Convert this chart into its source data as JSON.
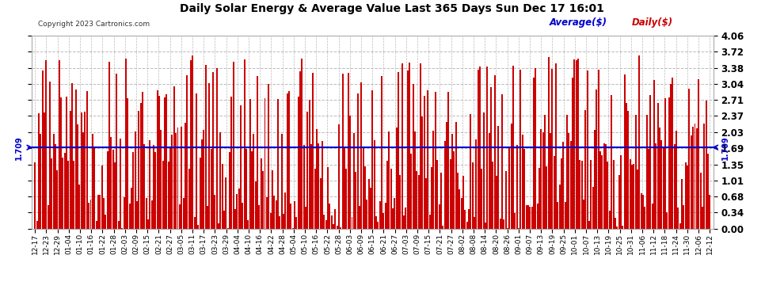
{
  "title": "Daily Solar Energy & Average Value Last 365 Days Sun Dec 17 16:01",
  "copyright": "Copyright 2023 Cartronics.com",
  "legend_average": "Average($)",
  "legend_daily": "Daily($)",
  "average_value": 1.709,
  "bar_color": "#cc0000",
  "average_line_color": "#0000cc",
  "yticks": [
    0.0,
    0.34,
    0.68,
    1.01,
    1.35,
    1.69,
    2.03,
    2.37,
    2.71,
    3.04,
    3.38,
    3.72,
    4.06
  ],
  "ylim": [
    0.0,
    4.06
  ],
  "background_color": "#ffffff",
  "plot_bg_color": "#ffffff",
  "grid_color": "#bbbbbb",
  "title_color": "#000000",
  "xtick_labels": [
    "12-17",
    "12-23",
    "12-29",
    "01-04",
    "01-10",
    "01-16",
    "01-22",
    "01-28",
    "02-03",
    "02-09",
    "02-15",
    "02-21",
    "02-27",
    "03-05",
    "03-11",
    "03-17",
    "03-23",
    "03-29",
    "04-04",
    "04-10",
    "04-16",
    "04-22",
    "04-28",
    "05-04",
    "05-10",
    "05-16",
    "05-22",
    "05-28",
    "06-03",
    "06-09",
    "06-15",
    "06-21",
    "06-27",
    "07-03",
    "07-09",
    "07-15",
    "07-21",
    "07-27",
    "08-02",
    "08-08",
    "08-14",
    "08-20",
    "08-26",
    "09-01",
    "09-07",
    "09-13",
    "09-19",
    "09-25",
    "10-01",
    "10-07",
    "10-13",
    "10-19",
    "10-25",
    "10-31",
    "11-06",
    "11-12",
    "11-18",
    "11-24",
    "11-30",
    "12-06",
    "12-12"
  ]
}
